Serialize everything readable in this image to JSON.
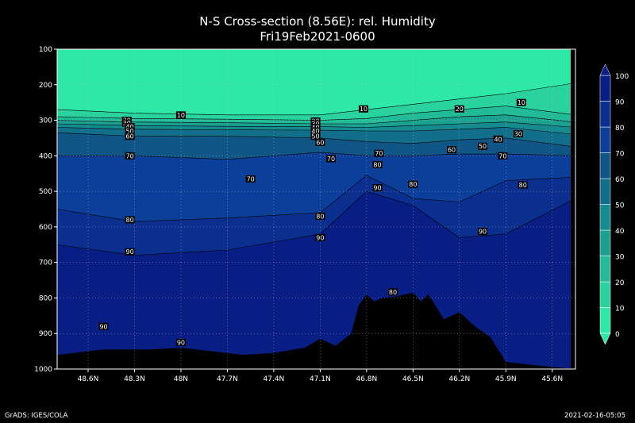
{
  "title": "N-S Cross-section (8.56E): rel. Humidity",
  "subtitle": "Fri19Feb2021-0600",
  "footer_left": "GrADS: IGES/COLA",
  "footer_right": "2021-02-16-05:05",
  "colors": {
    "levels": [
      "#2ee8a8",
      "#2ad39e",
      "#22bb98",
      "#1ba190",
      "#158a8f",
      "#126f8c",
      "#0f5585",
      "#0b3f9a",
      "#0a2f8e",
      "#081e84"
    ],
    "terrain": "#000000",
    "grid": "#cccccc"
  },
  "chart_data": {
    "type": "heatmap",
    "title": "N-S Cross-section (8.56E): rel. Humidity",
    "subtitle": "Fri19Feb2021-0600",
    "x_ticks": [
      "48.6N",
      "48.3N",
      "48N",
      "47.7N",
      "47.4N",
      "47.1N",
      "46.8N",
      "46.5N",
      "46.2N",
      "45.9N",
      "45.6N"
    ],
    "y_ticks": [
      "100",
      "200",
      "300",
      "400",
      "500",
      "600",
      "700",
      "800",
      "900",
      "1000"
    ],
    "ylim": [
      100,
      1000
    ],
    "xlim": [
      48.8,
      45.45
    ],
    "colorbar_ticks": [
      "0",
      "10",
      "20",
      "30",
      "40",
      "50",
      "60",
      "70",
      "80",
      "90",
      "100"
    ],
    "contour_levels": [
      10,
      20,
      30,
      40,
      50,
      60,
      70,
      80,
      90
    ],
    "bands_top_hpa_by_lat": [
      {
        "lat": 48.8,
        "tops": [
          270,
          290,
          300,
          310,
          320,
          335,
          400,
          550,
          650
        ]
      },
      {
        "lat": 48.3,
        "tops": [
          280,
          295,
          305,
          315,
          325,
          345,
          400,
          585,
          680
        ]
      },
      {
        "lat": 47.7,
        "tops": [
          285,
          297,
          307,
          317,
          327,
          345,
          410,
          575,
          665
        ]
      },
      {
        "lat": 47.1,
        "tops": [
          285,
          300,
          310,
          318,
          328,
          350,
          390,
          560,
          620
        ]
      },
      {
        "lat": 46.8,
        "tops": [
          270,
          295,
          310,
          320,
          330,
          360,
          400,
          455,
          500
        ]
      },
      {
        "lat": 46.5,
        "tops": [
          255,
          280,
          300,
          315,
          330,
          365,
          400,
          520,
          540
        ]
      },
      {
        "lat": 46.2,
        "tops": [
          240,
          270,
          290,
          310,
          325,
          355,
          395,
          530,
          630
        ]
      },
      {
        "lat": 45.9,
        "tops": [
          225,
          260,
          285,
          305,
          320,
          350,
          395,
          470,
          620
        ]
      },
      {
        "lat": 45.45,
        "tops": [
          195,
          285,
          305,
          320,
          340,
          375,
          400,
          460,
          520
        ]
      }
    ],
    "terrain_surface_hpa": [
      {
        "lat": 48.8,
        "p": 960
      },
      {
        "lat": 48.5,
        "p": 945
      },
      {
        "lat": 48.2,
        "p": 945
      },
      {
        "lat": 48.0,
        "p": 940
      },
      {
        "lat": 47.8,
        "p": 950
      },
      {
        "lat": 47.6,
        "p": 960
      },
      {
        "lat": 47.4,
        "p": 955
      },
      {
        "lat": 47.2,
        "p": 940
      },
      {
        "lat": 47.1,
        "p": 915
      },
      {
        "lat": 47.0,
        "p": 935
      },
      {
        "lat": 46.9,
        "p": 900
      },
      {
        "lat": 46.85,
        "p": 820
      },
      {
        "lat": 46.8,
        "p": 790
      },
      {
        "lat": 46.75,
        "p": 810
      },
      {
        "lat": 46.7,
        "p": 800
      },
      {
        "lat": 46.6,
        "p": 795
      },
      {
        "lat": 46.5,
        "p": 785
      },
      {
        "lat": 46.45,
        "p": 810
      },
      {
        "lat": 46.4,
        "p": 790
      },
      {
        "lat": 46.3,
        "p": 860
      },
      {
        "lat": 46.2,
        "p": 840
      },
      {
        "lat": 46.1,
        "p": 880
      },
      {
        "lat": 46.0,
        "p": 910
      },
      {
        "lat": 45.9,
        "p": 980
      },
      {
        "lat": 45.7,
        "p": 990
      },
      {
        "lat": 45.45,
        "p": 1000
      }
    ],
    "contour_labels": [
      {
        "text": "10",
        "lat": 48.0,
        "p": 285
      },
      {
        "text": "30",
        "lat": 48.35,
        "p": 300
      },
      {
        "text": "30",
        "lat": 48.35,
        "p": 308
      },
      {
        "text": "40",
        "lat": 48.33,
        "p": 318
      },
      {
        "text": "50",
        "lat": 48.33,
        "p": 330
      },
      {
        "text": "60",
        "lat": 48.33,
        "p": 345
      },
      {
        "text": "70",
        "lat": 48.33,
        "p": 400
      },
      {
        "text": "80",
        "lat": 48.33,
        "p": 580
      },
      {
        "text": "90",
        "lat": 48.33,
        "p": 670
      },
      {
        "text": "90",
        "lat": 48.5,
        "p": 880
      },
      {
        "text": "90",
        "lat": 48.0,
        "p": 925
      },
      {
        "text": "70",
        "lat": 47.55,
        "p": 465
      },
      {
        "text": "20",
        "lat": 47.13,
        "p": 302
      },
      {
        "text": "30",
        "lat": 47.13,
        "p": 310
      },
      {
        "text": "40",
        "lat": 47.13,
        "p": 320
      },
      {
        "text": "40",
        "lat": 47.13,
        "p": 330
      },
      {
        "text": "50",
        "lat": 47.13,
        "p": 345
      },
      {
        "text": "60",
        "lat": 47.1,
        "p": 362
      },
      {
        "text": "70",
        "lat": 47.03,
        "p": 408
      },
      {
        "text": "80",
        "lat": 47.1,
        "p": 570
      },
      {
        "text": "90",
        "lat": 47.1,
        "p": 630
      },
      {
        "text": "10",
        "lat": 46.82,
        "p": 268
      },
      {
        "text": "70",
        "lat": 46.72,
        "p": 393
      },
      {
        "text": "80",
        "lat": 46.73,
        "p": 425
      },
      {
        "text": "90",
        "lat": 46.73,
        "p": 490
      },
      {
        "text": "80",
        "lat": 46.5,
        "p": 480
      },
      {
        "text": "80",
        "lat": 46.63,
        "p": 783
      },
      {
        "text": "20",
        "lat": 46.2,
        "p": 268
      },
      {
        "text": "60",
        "lat": 46.25,
        "p": 383
      },
      {
        "text": "50",
        "lat": 46.05,
        "p": 373
      },
      {
        "text": "40",
        "lat": 45.95,
        "p": 353
      },
      {
        "text": "30",
        "lat": 45.82,
        "p": 338
      },
      {
        "text": "70",
        "lat": 45.92,
        "p": 400
      },
      {
        "text": "10",
        "lat": 45.8,
        "p": 250
      },
      {
        "text": "90",
        "lat": 46.05,
        "p": 613
      },
      {
        "text": "80",
        "lat": 45.79,
        "p": 482
      }
    ]
  }
}
